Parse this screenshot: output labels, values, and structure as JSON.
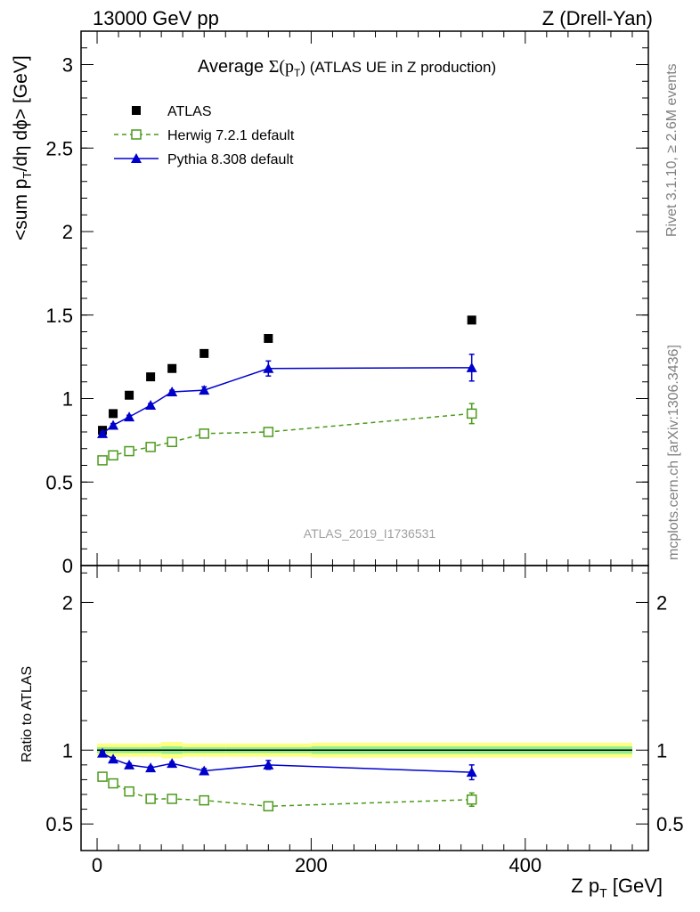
{
  "header": {
    "left": "13000 GeV pp",
    "right": "Z (Drell-Yan)"
  },
  "plot_title": {
    "prefix": "Average ",
    "sigma": "Σ(p",
    "sub": "T",
    "suffix": ") (ATLAS UE in Z production)"
  },
  "ylabel": {
    "a": "<sum p",
    "a_sub": "T",
    "b": "/dη dϕ> [GeV]"
  },
  "ratio_ylabel": "Ratio to ATLAS",
  "xlabel": {
    "a": "Z p",
    "a_sub": "T",
    "b": " [GeV]"
  },
  "watermark": "ATLAS_2019_I1736531",
  "side_top": "Rivet 3.1.10, ≥ 2.6M events",
  "side_bottom": "mcplots.cern.ch [arXiv:1306.3436]",
  "colors": {
    "atlas": "#000000",
    "herwig": "#4c9a1c",
    "pythia": "#0000cc",
    "band_inner": "#90ee90",
    "band_outer": "#ffff80",
    "watermark": "#a0a0a0"
  },
  "chart_data": [
    {
      "type": "scatter",
      "panel": "main",
      "xlim": [
        -15,
        515
      ],
      "ylim": [
        0,
        3.2
      ],
      "xticks": [
        0,
        200,
        400
      ],
      "yticks": [
        0,
        0.5,
        1,
        1.5,
        2,
        2.5,
        3
      ],
      "ytick_labels": [
        "0",
        "0.5",
        "1",
        "1.5",
        "2",
        "2.5",
        "3"
      ],
      "legend_position": "top-left",
      "series": [
        {
          "name": "ATLAS",
          "style": "data",
          "x": [
            5,
            15,
            30,
            50,
            70,
            100,
            160,
            350
          ],
          "y": [
            0.81,
            0.91,
            1.02,
            1.13,
            1.18,
            1.27,
            1.36,
            1.47
          ],
          "err": [
            0.01,
            0.01,
            0.01,
            0.01,
            0.01,
            0.01,
            0.01,
            0.01
          ]
        },
        {
          "name": "Herwig 7.2.1 default",
          "style": "open-square-dashed",
          "x": [
            5,
            15,
            30,
            50,
            70,
            100,
            160,
            350
          ],
          "y": [
            0.63,
            0.66,
            0.685,
            0.71,
            0.74,
            0.79,
            0.8,
            0.91
          ],
          "err": [
            0.01,
            0.01,
            0.01,
            0.01,
            0.01,
            0.01,
            0.01,
            0.06
          ]
        },
        {
          "name": "Pythia 8.308 default",
          "style": "triangle-solid",
          "x": [
            5,
            15,
            30,
            50,
            70,
            100,
            160,
            350
          ],
          "y": [
            0.79,
            0.84,
            0.89,
            0.96,
            1.04,
            1.05,
            1.18,
            1.185
          ],
          "err": [
            0.01,
            0.01,
            0.01,
            0.01,
            0.01,
            0.02,
            0.045,
            0.08
          ]
        }
      ]
    },
    {
      "type": "scatter",
      "panel": "ratio",
      "xlim": [
        -15,
        515
      ],
      "ylim": [
        0.32,
        2.25
      ],
      "xticks": [
        0,
        200,
        400
      ],
      "xtick_labels": [
        "0",
        "200",
        "400"
      ],
      "yticks": [
        0.5,
        1,
        2
      ],
      "ytick_labels": [
        "0.5",
        "1",
        "2"
      ],
      "reference": 1,
      "band": {
        "edges": [
          0,
          10,
          20,
          40,
          60,
          80,
          120,
          200,
          500
        ],
        "inner": [
          0.02,
          0.02,
          0.02,
          0.02,
          0.025,
          0.02,
          0.02,
          0.025
        ],
        "outer": [
          0.045,
          0.045,
          0.045,
          0.045,
          0.055,
          0.045,
          0.045,
          0.05
        ]
      },
      "series": [
        {
          "name": "Herwig 7.2.1 default",
          "style": "open-square-dashed",
          "x": [
            5,
            15,
            30,
            50,
            70,
            100,
            160,
            350
          ],
          "y": [
            0.82,
            0.775,
            0.72,
            0.67,
            0.67,
            0.66,
            0.62,
            0.665
          ],
          "err": [
            0.01,
            0.01,
            0.01,
            0.01,
            0.01,
            0.01,
            0.01,
            0.045
          ]
        },
        {
          "name": "Pythia 8.308 default",
          "style": "triangle-solid",
          "x": [
            5,
            15,
            30,
            50,
            70,
            100,
            160,
            350
          ],
          "y": [
            0.98,
            0.94,
            0.9,
            0.88,
            0.91,
            0.86,
            0.9,
            0.85
          ],
          "err": [
            0.01,
            0.01,
            0.01,
            0.01,
            0.01,
            0.015,
            0.03,
            0.05
          ]
        }
      ]
    }
  ]
}
